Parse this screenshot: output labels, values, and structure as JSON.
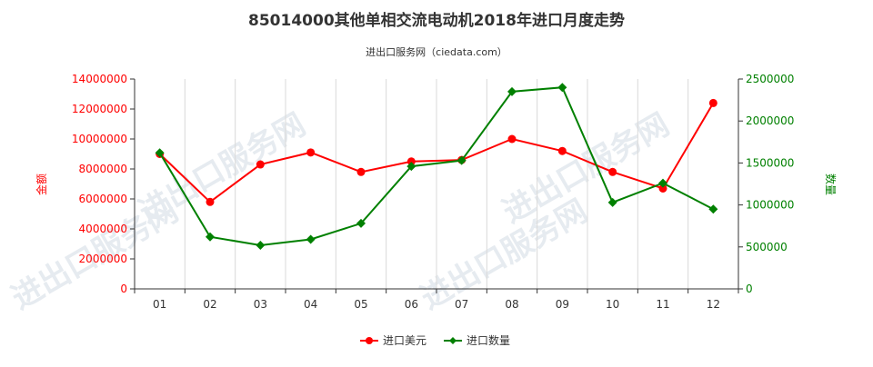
{
  "chart_data": {
    "type": "line",
    "title": "85014000其他单相交流电动机2018年进口月度走势",
    "subtitle": "进出口服务网（ciedata.com）",
    "watermark": "进出口服务网",
    "categories": [
      "01",
      "02",
      "03",
      "04",
      "05",
      "06",
      "07",
      "08",
      "09",
      "10",
      "11",
      "12"
    ],
    "y_left": {
      "label": "金额",
      "range": [
        0,
        14000000
      ],
      "ticks": [
        "0",
        "2000000",
        "4000000",
        "6000000",
        "8000000",
        "10000000",
        "12000000",
        "14000000"
      ]
    },
    "y_right": {
      "label": "数量",
      "range": [
        0,
        2500000
      ],
      "ticks": [
        "0",
        "500000",
        "1000000",
        "1500000",
        "2000000",
        "2500000"
      ]
    },
    "series": [
      {
        "name": "进口美元",
        "axis": "left",
        "color": "#ff0000",
        "values": [
          9000000,
          5800000,
          8300000,
          9100000,
          7800000,
          8500000,
          8600000,
          10000000,
          9200000,
          7800000,
          6700000,
          12400000
        ]
      },
      {
        "name": "进口数量",
        "axis": "right",
        "color": "#008000",
        "values": [
          1620000,
          620000,
          520000,
          590000,
          780000,
          1460000,
          1530000,
          2350000,
          2400000,
          1030000,
          1260000,
          950000
        ]
      }
    ],
    "grid": {
      "vertical": true,
      "horizontal": false
    },
    "legend_position": "bottom-center"
  }
}
